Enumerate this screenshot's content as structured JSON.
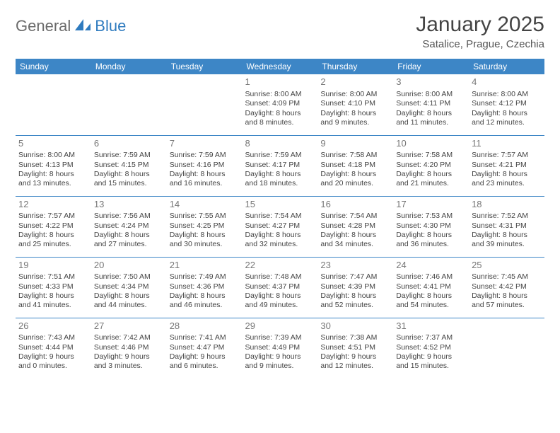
{
  "logo": {
    "part1": "General",
    "part2": "Blue"
  },
  "title": "January 2025",
  "location": "Satalice, Prague, Czechia",
  "colors": {
    "header_bg": "#3d86c6",
    "header_text": "#ffffff",
    "border": "#3d86c6",
    "daynum": "#777777",
    "body_text": "#444444",
    "logo_gray": "#6b6b6b",
    "logo_blue": "#2f7bbf",
    "background": "#ffffff"
  },
  "weekdays": [
    "Sunday",
    "Monday",
    "Tuesday",
    "Wednesday",
    "Thursday",
    "Friday",
    "Saturday"
  ],
  "weeks": [
    [
      null,
      null,
      null,
      {
        "n": "1",
        "sr": "8:00 AM",
        "ss": "4:09 PM",
        "dl": "8 hours and 8 minutes."
      },
      {
        "n": "2",
        "sr": "8:00 AM",
        "ss": "4:10 PM",
        "dl": "8 hours and 9 minutes."
      },
      {
        "n": "3",
        "sr": "8:00 AM",
        "ss": "4:11 PM",
        "dl": "8 hours and 11 minutes."
      },
      {
        "n": "4",
        "sr": "8:00 AM",
        "ss": "4:12 PM",
        "dl": "8 hours and 12 minutes."
      }
    ],
    [
      {
        "n": "5",
        "sr": "8:00 AM",
        "ss": "4:13 PM",
        "dl": "8 hours and 13 minutes."
      },
      {
        "n": "6",
        "sr": "7:59 AM",
        "ss": "4:15 PM",
        "dl": "8 hours and 15 minutes."
      },
      {
        "n": "7",
        "sr": "7:59 AM",
        "ss": "4:16 PM",
        "dl": "8 hours and 16 minutes."
      },
      {
        "n": "8",
        "sr": "7:59 AM",
        "ss": "4:17 PM",
        "dl": "8 hours and 18 minutes."
      },
      {
        "n": "9",
        "sr": "7:58 AM",
        "ss": "4:18 PM",
        "dl": "8 hours and 20 minutes."
      },
      {
        "n": "10",
        "sr": "7:58 AM",
        "ss": "4:20 PM",
        "dl": "8 hours and 21 minutes."
      },
      {
        "n": "11",
        "sr": "7:57 AM",
        "ss": "4:21 PM",
        "dl": "8 hours and 23 minutes."
      }
    ],
    [
      {
        "n": "12",
        "sr": "7:57 AM",
        "ss": "4:22 PM",
        "dl": "8 hours and 25 minutes."
      },
      {
        "n": "13",
        "sr": "7:56 AM",
        "ss": "4:24 PM",
        "dl": "8 hours and 27 minutes."
      },
      {
        "n": "14",
        "sr": "7:55 AM",
        "ss": "4:25 PM",
        "dl": "8 hours and 30 minutes."
      },
      {
        "n": "15",
        "sr": "7:54 AM",
        "ss": "4:27 PM",
        "dl": "8 hours and 32 minutes."
      },
      {
        "n": "16",
        "sr": "7:54 AM",
        "ss": "4:28 PM",
        "dl": "8 hours and 34 minutes."
      },
      {
        "n": "17",
        "sr": "7:53 AM",
        "ss": "4:30 PM",
        "dl": "8 hours and 36 minutes."
      },
      {
        "n": "18",
        "sr": "7:52 AM",
        "ss": "4:31 PM",
        "dl": "8 hours and 39 minutes."
      }
    ],
    [
      {
        "n": "19",
        "sr": "7:51 AM",
        "ss": "4:33 PM",
        "dl": "8 hours and 41 minutes."
      },
      {
        "n": "20",
        "sr": "7:50 AM",
        "ss": "4:34 PM",
        "dl": "8 hours and 44 minutes."
      },
      {
        "n": "21",
        "sr": "7:49 AM",
        "ss": "4:36 PM",
        "dl": "8 hours and 46 minutes."
      },
      {
        "n": "22",
        "sr": "7:48 AM",
        "ss": "4:37 PM",
        "dl": "8 hours and 49 minutes."
      },
      {
        "n": "23",
        "sr": "7:47 AM",
        "ss": "4:39 PM",
        "dl": "8 hours and 52 minutes."
      },
      {
        "n": "24",
        "sr": "7:46 AM",
        "ss": "4:41 PM",
        "dl": "8 hours and 54 minutes."
      },
      {
        "n": "25",
        "sr": "7:45 AM",
        "ss": "4:42 PM",
        "dl": "8 hours and 57 minutes."
      }
    ],
    [
      {
        "n": "26",
        "sr": "7:43 AM",
        "ss": "4:44 PM",
        "dl": "9 hours and 0 minutes."
      },
      {
        "n": "27",
        "sr": "7:42 AM",
        "ss": "4:46 PM",
        "dl": "9 hours and 3 minutes."
      },
      {
        "n": "28",
        "sr": "7:41 AM",
        "ss": "4:47 PM",
        "dl": "9 hours and 6 minutes."
      },
      {
        "n": "29",
        "sr": "7:39 AM",
        "ss": "4:49 PM",
        "dl": "9 hours and 9 minutes."
      },
      {
        "n": "30",
        "sr": "7:38 AM",
        "ss": "4:51 PM",
        "dl": "9 hours and 12 minutes."
      },
      {
        "n": "31",
        "sr": "7:37 AM",
        "ss": "4:52 PM",
        "dl": "9 hours and 15 minutes."
      },
      null
    ]
  ],
  "labels": {
    "sunrise": "Sunrise:",
    "sunset": "Sunset:",
    "daylight": "Daylight:"
  }
}
